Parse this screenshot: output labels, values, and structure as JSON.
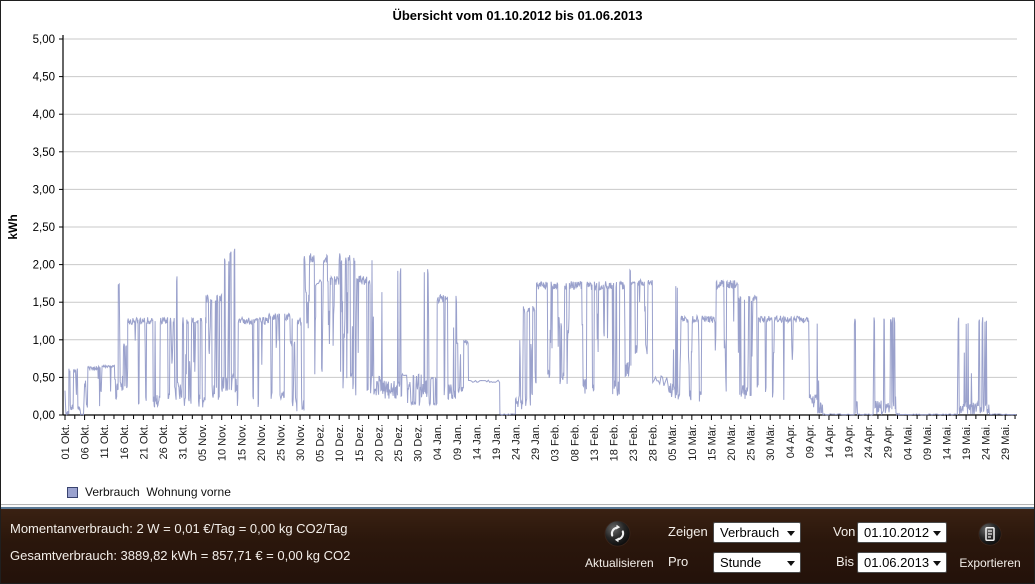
{
  "window_title": "Übersicht vom 01.10.2012 bis 01.06.2013",
  "chart": {
    "title": "Übersicht vom 01.10.2012 bis 01.06.2013",
    "legend_label": "Verbrauch  Wohnung vorne",
    "legend_swatch_color": "#9aa2cf",
    "legend_swatch_border": "#39436f",
    "series_color": "#8f97c6",
    "grid_color": "#c9c9c9",
    "axis_color": "#000000"
  },
  "chart_data": {
    "type": "line",
    "title": "Übersicht vom 01.10.2012 bis 01.06.2013",
    "xlabel": "",
    "ylabel": "kWh",
    "ylim": [
      0,
      5
    ],
    "y_tick_step": 0.5,
    "y_tick_labels": [
      "0,00",
      "0,50",
      "1,00",
      "1,50",
      "2,00",
      "2,50",
      "3,00",
      "3,50",
      "4,00",
      "4,50",
      "5,00"
    ],
    "x_range_days": [
      0,
      243
    ],
    "x_tick_interval_days": 5,
    "x_tick_labels": [
      "01 Okt.",
      "06 Okt.",
      "11 Okt.",
      "16 Okt.",
      "21 Okt.",
      "26 Okt.",
      "31 Okt.",
      "05 Nov.",
      "10 Nov.",
      "15 Nov.",
      "20 Nov.",
      "25 Nov.",
      "30 Nov.",
      "05 Dez.",
      "10 Dez.",
      "15 Dez.",
      "20 Dez.",
      "25 Dez.",
      "30 Dez.",
      "04 Jan.",
      "09 Jan.",
      "14 Jan.",
      "19 Jan.",
      "24 Jan.",
      "29 Jan.",
      "03 Feb.",
      "08 Feb.",
      "13 Feb.",
      "18 Feb.",
      "23 Feb.",
      "28 Feb.",
      "05 Mär.",
      "10 Mär.",
      "15 Mär.",
      "20 Mär.",
      "25 Mär.",
      "30 Mär.",
      "04 Apr.",
      "09 Apr.",
      "14 Apr.",
      "19 Apr.",
      "24 Apr.",
      "29 Apr.",
      "04 Mai.",
      "09 Mai.",
      "14 Mai.",
      "19 Mai.",
      "24 Mai.",
      "29 Mai."
    ],
    "grid": "horizontal",
    "legend_position": "bottom-left",
    "series": [
      {
        "name": "Verbrauch Wohnung vorne",
        "unit": "kWh",
        "resolution": "Stunde",
        "peak_kwh": 2.25,
        "peak_near": "13 Nov.",
        "envelope_segments": [
          [
            0,
            1,
            0,
            0.35,
            "sparse"
          ],
          [
            1,
            4,
            0.05,
            0.62,
            "dense"
          ],
          [
            4,
            5,
            0,
            0.06,
            "zero"
          ],
          [
            5,
            9,
            0.05,
            0.65,
            "dense"
          ],
          [
            9,
            12,
            0.3,
            0.66,
            "plateau"
          ],
          [
            12,
            13.2,
            0.2,
            0.66,
            "dense"
          ],
          [
            13.2,
            13.6,
            0.3,
            1.25,
            "spike"
          ],
          [
            13.6,
            14.8,
            0.3,
            1.78,
            "spike"
          ],
          [
            14.8,
            16,
            0.3,
            0.95,
            "dense"
          ],
          [
            16,
            20,
            0.1,
            1.3,
            "plateau"
          ],
          [
            20,
            25,
            0.1,
            1.3,
            "dense"
          ],
          [
            25,
            28,
            0.2,
            1.3,
            "dense"
          ],
          [
            28,
            30,
            0.2,
            1.9,
            "spike"
          ],
          [
            30,
            36,
            0.1,
            1.3,
            "dense"
          ],
          [
            36,
            40,
            0.2,
            1.6,
            "dense"
          ],
          [
            40,
            42,
            0.3,
            2.1,
            "spike"
          ],
          [
            42,
            44,
            0.3,
            2.25,
            "spike"
          ],
          [
            44,
            52,
            0.1,
            1.3,
            "plateau"
          ],
          [
            52,
            58,
            0.15,
            1.35,
            "dense"
          ],
          [
            58,
            61,
            0.05,
            1.3,
            "dense"
          ],
          [
            61,
            64,
            0.4,
            2.15,
            "tall"
          ],
          [
            64,
            65.5,
            1.72,
            1.86,
            "flat"
          ],
          [
            65.5,
            67,
            0.4,
            2.15,
            "tall"
          ],
          [
            67,
            70,
            0.3,
            1.85,
            "dense"
          ],
          [
            70,
            74,
            0.3,
            2.15,
            "tall"
          ],
          [
            74,
            78,
            0.2,
            1.85,
            "dense"
          ],
          [
            78,
            81,
            0.25,
            2.1,
            "spike"
          ],
          [
            81,
            86,
            0.2,
            1.95,
            "spike"
          ],
          [
            86,
            91,
            0.12,
            0.55,
            "dense"
          ],
          [
            91,
            93,
            0.2,
            1.95,
            "spike"
          ],
          [
            93,
            95,
            0.1,
            0.5,
            "dense"
          ],
          [
            95,
            100,
            0.2,
            1.6,
            "dense"
          ],
          [
            100,
            103,
            0.3,
            1.0,
            "dense"
          ],
          [
            103,
            111,
            0.43,
            0.47,
            "flat"
          ],
          [
            111,
            115,
            0,
            0.03,
            "zero"
          ],
          [
            115,
            117,
            0.05,
            1.45,
            "spike"
          ],
          [
            117,
            120,
            0.1,
            1.45,
            "dense"
          ],
          [
            120,
            132,
            0.4,
            1.78,
            "plateau"
          ],
          [
            132,
            143,
            0.25,
            1.78,
            "dense"
          ],
          [
            143,
            144.5,
            0.5,
            1.95,
            "spike"
          ],
          [
            144.5,
            150,
            0.8,
            1.8,
            "plateau"
          ],
          [
            150,
            154,
            0.38,
            0.52,
            "flat"
          ],
          [
            154,
            157,
            0.2,
            1.75,
            "spike"
          ],
          [
            157,
            166,
            0.15,
            1.32,
            "plateau"
          ],
          [
            166,
            172,
            0.3,
            1.8,
            "plateau"
          ],
          [
            172,
            177,
            0.2,
            1.6,
            "dense"
          ],
          [
            177,
            190,
            0.2,
            1.32,
            "plateau"
          ],
          [
            190,
            192,
            0.1,
            1.3,
            "sparse"
          ],
          [
            192,
            193.5,
            0,
            1.3,
            "spike"
          ],
          [
            193.5,
            201.5,
            0,
            0.01,
            "zero"
          ],
          [
            201.5,
            202.3,
            0,
            1.3,
            "spike"
          ],
          [
            202.3,
            206.5,
            0,
            0.01,
            "zero"
          ],
          [
            206.5,
            212,
            0,
            1.3,
            "spike"
          ],
          [
            212,
            213,
            0,
            0.25,
            "sparse"
          ],
          [
            213,
            228,
            0,
            0.01,
            "zero"
          ],
          [
            228,
            236,
            0,
            1.3,
            "spike"
          ],
          [
            236,
            243,
            0,
            0.01,
            "zero"
          ]
        ]
      }
    ]
  },
  "toolbar": {
    "momentan": "Momentanverbrauch: 2 W = 0,01 €/Tag = 0,00 kg CO2/Tag",
    "gesamt": "Gesamtverbrauch: 3889,82 kWh = 857,71 € = 0,00 kg CO2",
    "aktualisieren_label": "Aktualisieren",
    "zeigen_label": "Zeigen",
    "zeigen_value": "Verbrauch",
    "pro_label": "Pro",
    "pro_value": "Stunde",
    "von_label": "Von",
    "von_value": "01.10.2012",
    "bis_label": "Bis",
    "bis_value": "01.06.2013",
    "exportieren_label": "Exportieren",
    "bg_color": "#2b170c"
  },
  "icons": {
    "refresh_icon": "circular-arrows",
    "export_icon": "document-page",
    "combo_arrow": "▼"
  }
}
